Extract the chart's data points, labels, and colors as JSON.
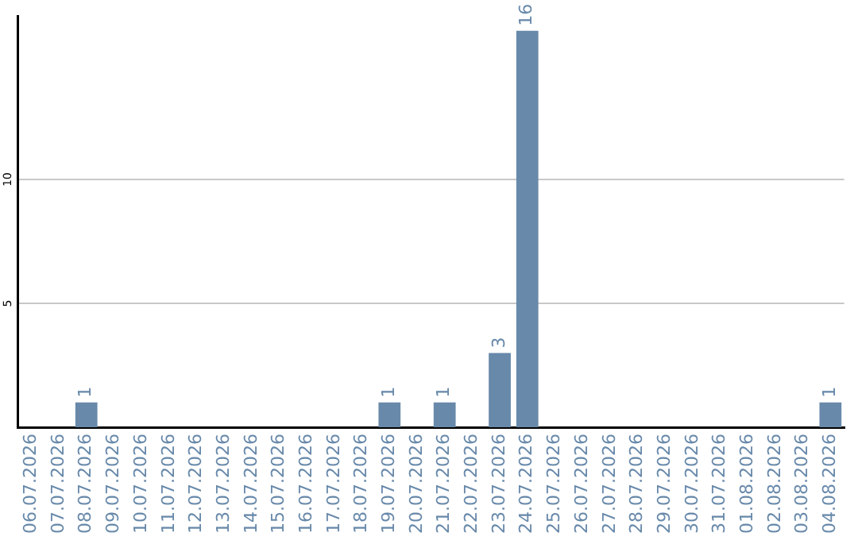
{
  "chart_data": {
    "type": "bar",
    "categories": [
      "06.07.2026",
      "07.07.2026",
      "08.07.2026",
      "09.07.2026",
      "10.07.2026",
      "11.07.2026",
      "12.07.2026",
      "13.07.2026",
      "14.07.2026",
      "15.07.2026",
      "16.07.2026",
      "17.07.2026",
      "18.07.2026",
      "19.07.2026",
      "20.07.2026",
      "21.07.2026",
      "22.07.2026",
      "23.07.2026",
      "24.07.2026",
      "25.07.2026",
      "26.07.2026",
      "27.07.2026",
      "28.07.2026",
      "29.07.2026",
      "30.07.2026",
      "31.07.2026",
      "01.08.2026",
      "02.08.2026",
      "03.08.2026",
      "04.08.2026"
    ],
    "values": [
      0,
      0,
      1,
      0,
      0,
      0,
      0,
      0,
      0,
      0,
      0,
      0,
      0,
      1,
      0,
      1,
      0,
      3,
      16,
      0,
      0,
      0,
      0,
      0,
      0,
      0,
      0,
      0,
      0,
      1
    ],
    "value_labels": [
      null,
      null,
      "1",
      null,
      null,
      null,
      null,
      null,
      null,
      null,
      null,
      null,
      null,
      "1",
      null,
      "1",
      null,
      "3",
      "16",
      null,
      null,
      null,
      null,
      null,
      null,
      null,
      null,
      null,
      null,
      "1"
    ],
    "color": "#6889aa",
    "ylim": [
      0,
      16.6
    ],
    "yticks": [
      5,
      10
    ],
    "grid": "y",
    "legend": false
  }
}
